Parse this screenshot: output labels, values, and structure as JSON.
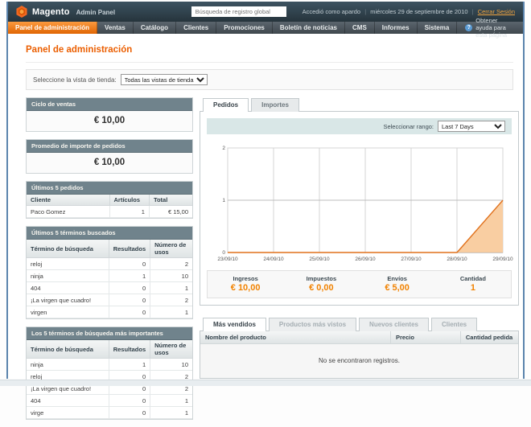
{
  "header": {
    "brand": "Magento",
    "brand_suffix": "Admin Panel",
    "search_placeholder": "Búsqueda de registro global",
    "logged_in_as": "Accedió como apardo",
    "date": "miércoles 29 de septiembre de 2010",
    "logout_label": "Cerrar Sesión"
  },
  "nav": {
    "items": [
      {
        "label": "Panel de administración",
        "active": true
      },
      {
        "label": "Ventas"
      },
      {
        "label": "Catálogo"
      },
      {
        "label": "Clientes"
      },
      {
        "label": "Promociones"
      },
      {
        "label": "Boletín de noticias"
      },
      {
        "label": "CMS"
      },
      {
        "label": "Informes"
      },
      {
        "label": "Sistema"
      }
    ],
    "help_label": "Obtener ayuda para esta página"
  },
  "page": {
    "title": "Panel de administración",
    "store_switcher_label": "Seleccione la vista de tienda:",
    "store_switcher_value": "Todas las vistas de tienda"
  },
  "left": {
    "lifetime_sales": {
      "title": "Ciclo de ventas",
      "value": "€ 10,00"
    },
    "average_orders": {
      "title": "Promedio de importe de pedidos",
      "value": "€ 10,00"
    },
    "last_orders": {
      "title": "Últimos 5 pedidos",
      "columns": [
        "Cliente",
        "Artículos",
        "Total"
      ],
      "rows": [
        [
          "Paco Gomez",
          "1",
          "€ 15,00"
        ]
      ]
    },
    "last_search": {
      "title": "Últimos 5 términos buscados",
      "columns": [
        "Término de búsqueda",
        "Resultados",
        "Número de usos"
      ],
      "rows": [
        [
          "reloj",
          "0",
          "2"
        ],
        [
          "ninja",
          "1",
          "10"
        ],
        [
          "404",
          "0",
          "1"
        ],
        [
          "¡La virgen que cuadro!",
          "0",
          "2"
        ],
        [
          "virgen",
          "0",
          "1"
        ]
      ]
    },
    "top_search": {
      "title": "Los 5 términos de búsqueda más importantes",
      "columns": [
        "Término de búsqueda",
        "Resultados",
        "Número de usos"
      ],
      "rows": [
        [
          "ninja",
          "1",
          "10"
        ],
        [
          "reloj",
          "0",
          "2"
        ],
        [
          "¡La virgen que cuadro!",
          "0",
          "2"
        ],
        [
          "404",
          "0",
          "1"
        ],
        [
          "virge",
          "0",
          "1"
        ]
      ]
    }
  },
  "right": {
    "tabs": [
      {
        "label": "Pedidos",
        "active": true
      },
      {
        "label": "Importes"
      }
    ],
    "range_label": "Seleccionar rango:",
    "range_value": "Last 7 Days",
    "metrics": [
      {
        "label": "Ingresos",
        "value": "€ 10,00"
      },
      {
        "label": "Impuestos",
        "value": "€ 0,00"
      },
      {
        "label": "Envíos",
        "value": "€ 5,00"
      },
      {
        "label": "Cantidad",
        "value": "1"
      }
    ],
    "bottom_tabs": [
      {
        "label": "Más vendidos",
        "active": true
      },
      {
        "label": "Productos más vistos"
      },
      {
        "label": "Nuevos clientes"
      },
      {
        "label": "Clientes"
      }
    ],
    "grid": {
      "columns": [
        "Nombre del producto",
        "Precio",
        "Cantidad pedida"
      ],
      "empty_text": "No se encontraron registros."
    }
  },
  "chart_data": {
    "type": "area",
    "title": "Pedidos — Last 7 Days",
    "x": [
      "23/09/10",
      "24/09/10",
      "25/09/10",
      "26/09/10",
      "27/09/10",
      "28/09/10",
      "29/09/10"
    ],
    "values": [
      0,
      0,
      0,
      0,
      0,
      0,
      1
    ],
    "ylim": [
      0,
      2
    ],
    "yticks": [
      0,
      1,
      2
    ],
    "grid": true,
    "legend": false,
    "line_color": "#e0711c",
    "fill_color": "#f8c998"
  },
  "colors": {
    "accent_orange": "#eb5e00",
    "metric_value_orange": "#f18200",
    "nav_active_orange": "#e8680a",
    "box_header_slate": "#70838c",
    "range_bar_teal": "#d9e7e7"
  }
}
